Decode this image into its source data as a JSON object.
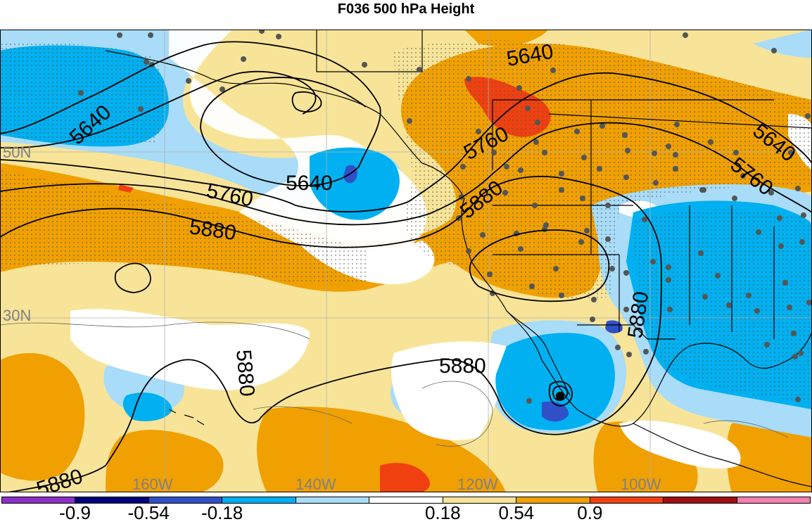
{
  "title": "F036 500 hPa Height",
  "lat_labels": [
    {
      "text": "50N",
      "lat": 50
    },
    {
      "text": "30N",
      "lat": 30
    }
  ],
  "lon_labels": [
    {
      "text": "160W",
      "lon": -160
    },
    {
      "text": "140W",
      "lon": -140
    },
    {
      "text": "120W",
      "lon": -120
    },
    {
      "text": "100W",
      "lon": -100
    }
  ],
  "contour_labels": [
    "5640",
    "5640",
    "5640",
    "5640",
    "5760",
    "5760",
    "5760",
    "5880",
    "5880",
    "5880",
    "5880",
    "5880",
    "5880"
  ],
  "colorbar": {
    "colors": [
      "#8c30c8",
      "#00007a",
      "#3050c8",
      "#00b0f0",
      "#a8dcf8",
      "#ffffff",
      "#f8e498",
      "#f0a000",
      "#f04010",
      "#a01010",
      "#f080b0"
    ],
    "ticks": [
      "-0.9",
      "-0.54",
      "-0.18",
      "0.18",
      "0.54",
      "0.9"
    ]
  }
}
